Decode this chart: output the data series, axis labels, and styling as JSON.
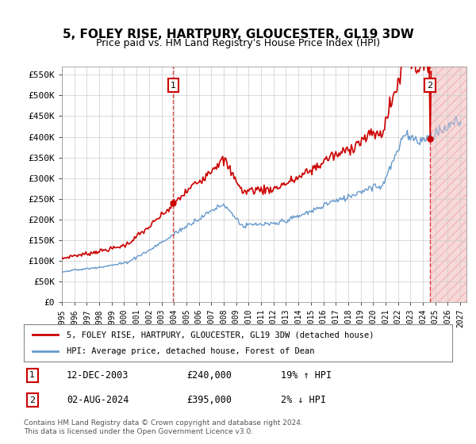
{
  "title": "5, FOLEY RISE, HARTPURY, GLOUCESTER, GL19 3DW",
  "subtitle": "Price paid vs. HM Land Registry's House Price Index (HPI)",
  "ylabel_ticks": [
    "£0",
    "£50K",
    "£100K",
    "£150K",
    "£200K",
    "£250K",
    "£300K",
    "£350K",
    "£400K",
    "£450K",
    "£500K",
    "£550K"
  ],
  "ytick_values": [
    0,
    50000,
    100000,
    150000,
    200000,
    250000,
    300000,
    350000,
    400000,
    450000,
    500000,
    550000
  ],
  "ylim": [
    0,
    570000
  ],
  "xlim_start": 1995.0,
  "xlim_end": 2027.5,
  "xtick_years": [
    1995,
    1996,
    1997,
    1998,
    1999,
    2000,
    2001,
    2002,
    2003,
    2004,
    2005,
    2006,
    2007,
    2008,
    2009,
    2010,
    2011,
    2012,
    2013,
    2014,
    2015,
    2016,
    2017,
    2018,
    2019,
    2020,
    2021,
    2022,
    2023,
    2024,
    2025,
    2026,
    2027
  ],
  "sale1_x": 2003.95,
  "sale1_y": 240000,
  "sale1_label": "1",
  "sale2_x": 2024.58,
  "sale2_y": 395000,
  "sale2_label": "2",
  "red_line_color": "#cc0000",
  "blue_line_color": "#6699cc",
  "hatch_color": "#ddaaaa",
  "sale_marker_color": "#cc0000",
  "legend_line1": "5, FOLEY RISE, HARTPURY, GLOUCESTER, GL19 3DW (detached house)",
  "legend_line2": "HPI: Average price, detached house, Forest of Dean",
  "annotation1_label": "1",
  "annotation1_date": "12-DEC-2003",
  "annotation1_price": "£240,000",
  "annotation1_hpi": "19% ↑ HPI",
  "annotation2_label": "2",
  "annotation2_date": "02-AUG-2024",
  "annotation2_price": "£395,000",
  "annotation2_hpi": "2% ↓ HPI",
  "footer": "Contains HM Land Registry data © Crown copyright and database right 2024.\nThis data is licensed under the Open Government Licence v3.0.",
  "bg_color": "#ffffff",
  "grid_color": "#cccccc",
  "hatch_region_start": 2024.58,
  "hatch_region_end": 2027.5
}
